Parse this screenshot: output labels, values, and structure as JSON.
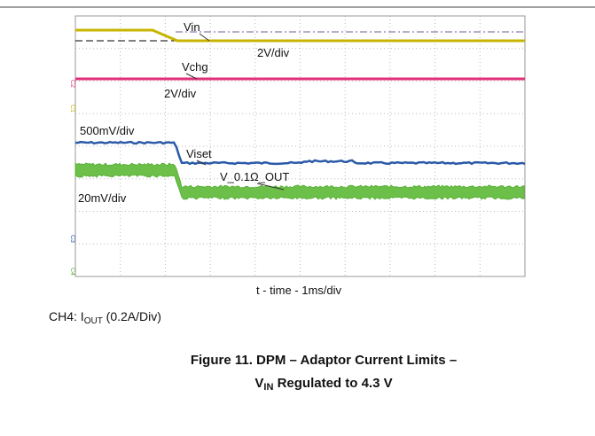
{
  "scope": {
    "labels": [
      "Vin",
      "2V/div",
      "Vchg",
      "2V/div",
      "500mV/div",
      "Viset",
      "V_0.1Ω_OUT",
      "20mV/div"
    ],
    "channels": [
      "C2",
      "C1",
      "C3",
      "C4"
    ],
    "x_label": "t - time - 1ms/div"
  },
  "note": {
    "prefix": "CH4: I",
    "sub": "OUT",
    "suffix": " (0.2A/Div)"
  },
  "caption": {
    "line1": "Figure 11. DPM – Adaptor Current Limits –",
    "line2_prefix": "V",
    "line2_sub": "IN",
    "line2_suffix": " Regulated to 4.3 V"
  }
}
